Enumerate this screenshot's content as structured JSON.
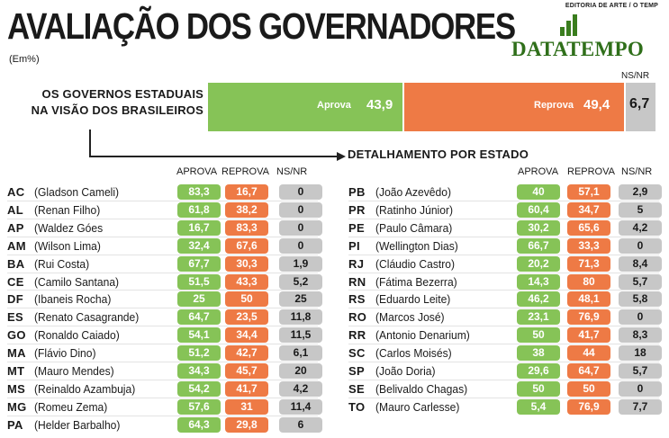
{
  "header": {
    "title": "AVALIAÇÃO DOS GOVERNADORES",
    "subtitle": "(Em%)",
    "editoria": "EDITORIA DE ARTE / O TEMP",
    "logo_text": "DATATEMPO"
  },
  "colors": {
    "approve": "#86c357",
    "reject": "#ee7a45",
    "nsnr": "#c7c7c7",
    "brand": "#2f6f1a"
  },
  "chart_data": [
    {
      "type": "bar",
      "orientation": "horizontal-stacked",
      "title_lines": [
        "OS GOVERNOS ESTADUAIS",
        "NA VISÃO DOS BRASILEIROS"
      ],
      "segments": [
        {
          "name": "Aprova",
          "value": 43.9,
          "display": "43,9"
        },
        {
          "name": "Reprova",
          "value": 49.4,
          "display": "49,4"
        },
        {
          "name": "NS/NR",
          "value": 6.7,
          "display": "6,7"
        }
      ]
    },
    {
      "type": "table",
      "title": "DETALHAMENTO POR ESTADO",
      "columns": [
        "APROVA",
        "REPROVA",
        "NS/NR"
      ],
      "left_rows": [
        {
          "uf": "AC",
          "name": "(Gladson Cameli)",
          "aprova": "83,3",
          "reprova": "16,7",
          "nsnr": "0"
        },
        {
          "uf": "AL",
          "name": "(Renan Filho)",
          "aprova": "61,8",
          "reprova": "38,2",
          "nsnr": "0"
        },
        {
          "uf": "AP",
          "name": "(Waldez Góes",
          "aprova": "16,7",
          "reprova": "83,3",
          "nsnr": "0"
        },
        {
          "uf": "AM",
          "name": "(Wilson Lima)",
          "aprova": "32,4",
          "reprova": "67,6",
          "nsnr": "0"
        },
        {
          "uf": "BA",
          "name": "(Rui Costa)",
          "aprova": "67,7",
          "reprova": "30,3",
          "nsnr": "1,9"
        },
        {
          "uf": "CE",
          "name": "(Camilo Santana)",
          "aprova": "51,5",
          "reprova": "43,3",
          "nsnr": "5,2"
        },
        {
          "uf": "DF",
          "name": "(Ibaneis Rocha)",
          "aprova": "25",
          "reprova": "50",
          "nsnr": "25"
        },
        {
          "uf": "ES",
          "name": "(Renato Casagrande)",
          "aprova": "64,7",
          "reprova": "23,5",
          "nsnr": "11,8"
        },
        {
          "uf": "GO",
          "name": "(Ronaldo Caiado)",
          "aprova": "54,1",
          "reprova": "34,4",
          "nsnr": "11,5"
        },
        {
          "uf": "MA",
          "name": "(Flávio Dino)",
          "aprova": "51,2",
          "reprova": "42,7",
          "nsnr": "6,1"
        },
        {
          "uf": "MT",
          "name": "(Mauro Mendes)",
          "aprova": "34,3",
          "reprova": "45,7",
          "nsnr": "20"
        },
        {
          "uf": "MS",
          "name": "(Reinaldo Azambuja)",
          "aprova": "54,2",
          "reprova": "41,7",
          "nsnr": "4,2"
        },
        {
          "uf": "MG",
          "name": "(Romeu Zema)",
          "aprova": "57,6",
          "reprova": "31",
          "nsnr": "11,4"
        },
        {
          "uf": "PA",
          "name": "(Helder Barbalho)",
          "aprova": "64,3",
          "reprova": "29,8",
          "nsnr": "6"
        }
      ],
      "right_rows": [
        {
          "uf": "PB",
          "name": "(João Azevêdo)",
          "aprova": "40",
          "reprova": "57,1",
          "nsnr": "2,9"
        },
        {
          "uf": "PR",
          "name": "(Ratinho Júnior)",
          "aprova": "60,4",
          "reprova": "34,7",
          "nsnr": "5"
        },
        {
          "uf": "PE",
          "name": "(Paulo Câmara)",
          "aprova": "30,2",
          "reprova": "65,6",
          "nsnr": "4,2"
        },
        {
          "uf": "PI",
          "name": "(Wellington Dias)",
          "aprova": "66,7",
          "reprova": "33,3",
          "nsnr": "0"
        },
        {
          "uf": "RJ",
          "name": "(Cláudio Castro)",
          "aprova": "20,2",
          "reprova": "71,3",
          "nsnr": "8,4"
        },
        {
          "uf": "RN",
          "name": "(Fátima Bezerra)",
          "aprova": "14,3",
          "reprova": "80",
          "nsnr": "5,7"
        },
        {
          "uf": "RS",
          "name": "(Eduardo Leite)",
          "aprova": "46,2",
          "reprova": "48,1",
          "nsnr": "5,8"
        },
        {
          "uf": "RO",
          "name": "(Marcos José)",
          "aprova": "23,1",
          "reprova": "76,9",
          "nsnr": "0"
        },
        {
          "uf": "RR",
          "name": "(Antonio Denarium)",
          "aprova": "50",
          "reprova": "41,7",
          "nsnr": "8,3"
        },
        {
          "uf": "SC",
          "name": "(Carlos Moisés)",
          "aprova": "38",
          "reprova": "44",
          "nsnr": "18"
        },
        {
          "uf": "SP",
          "name": "(João Doria)",
          "aprova": "29,6",
          "reprova": "64,7",
          "nsnr": "5,7"
        },
        {
          "uf": "SE",
          "name": "(Belivaldo Chagas)",
          "aprova": "50",
          "reprova": "50",
          "nsnr": "0"
        },
        {
          "uf": "TO",
          "name": "(Mauro Carlesse)",
          "aprova": "5,4",
          "reprova": "76,9",
          "nsnr": "7,7"
        }
      ]
    }
  ]
}
